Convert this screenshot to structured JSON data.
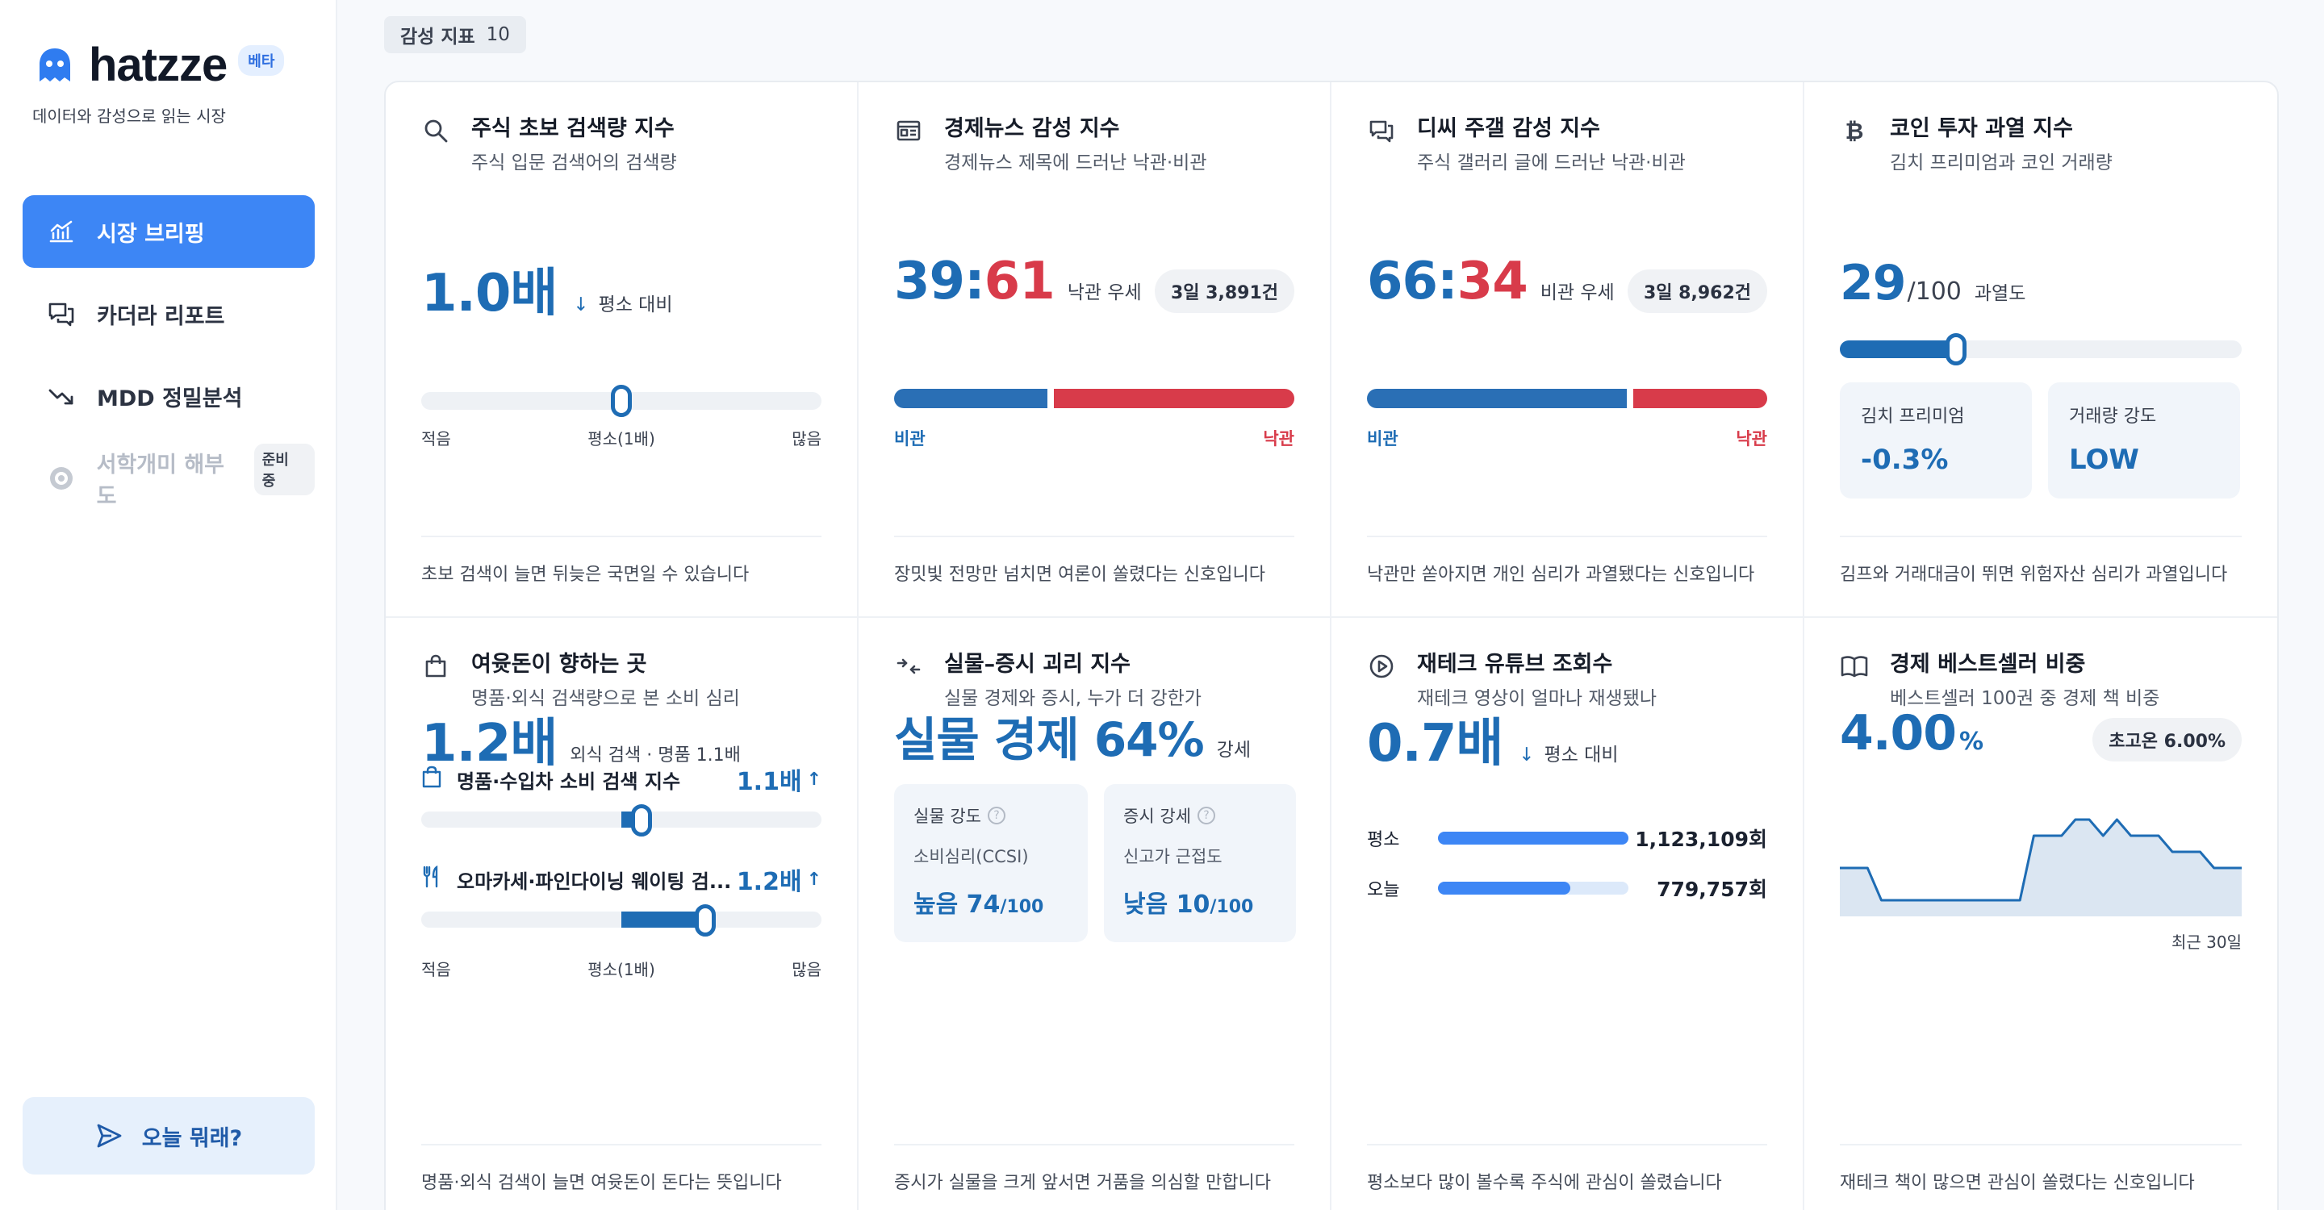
{
  "app": {
    "brand": "hatzze",
    "beta": "베타",
    "tagline": "데이터와 감성으로 읽는 시장"
  },
  "nav": [
    {
      "label": "시장 브리핑",
      "icon": "chart-icon",
      "active": true
    },
    {
      "label": "카더라 리포트",
      "icon": "chat-icon"
    },
    {
      "label": "MDD 정밀분석",
      "icon": "trend-down-icon"
    },
    {
      "label": "서학개미 해부도",
      "icon": "dots-icon",
      "disabled": true,
      "badge": "준비 중"
    }
  ],
  "today_button": "오늘 뭐래?",
  "section": {
    "label": "감성 지표",
    "count": "10"
  },
  "cards": {
    "search": {
      "title": "주식 초보 검색량 지수",
      "subtitle": "주식 입문 검색어의 검색량",
      "value": "1.0배",
      "suffix": "평소 대비",
      "level": 0.5,
      "scale": [
        "적음",
        "평소(1배)",
        "많음"
      ],
      "footer": "초보 검색이 늘면 뒤늦은 국면일 수 있습니다"
    },
    "news": {
      "title": "경제뉴스 감성 지수",
      "subtitle": "경제뉴스 제목에 드러난 낙관·비관",
      "left": "39",
      "sep": ":",
      "right": "61",
      "suffix": "낙관 우세",
      "pill": "3일 3,891건",
      "pess_share": 0.39,
      "labels": [
        "비관",
        "낙관"
      ],
      "footer": "장밋빛 전망만 넘치면 여론이 쏠렸다는 신호입니다"
    },
    "dc": {
      "title": "디씨 주갤 감성 지수",
      "subtitle": "주식 갤러리 글에 드러난 낙관·비관",
      "left": "66",
      "sep": ":",
      "right": "34",
      "suffix": "비관 우세",
      "pill": "3일 8,962건",
      "pess_share": 0.66,
      "labels": [
        "비관",
        "낙관"
      ],
      "footer": "낙관만 쏟아지면 개인 심리가 과열됐다는 신호입니다"
    },
    "coin": {
      "title": "코인 투자 과열 지수",
      "subtitle": "김치 프리미엄과 코인 거래량",
      "value": "29",
      "unit": "/100",
      "suffix": "과열도",
      "level": 0.29,
      "kimchi_label": "김치 프리미엄",
      "kimchi_value": "-0.3%",
      "volume_label": "거래량 강도",
      "volume_value": "LOW",
      "footer": "김프와 거래대금이 뛰면 위험자산 심리가 과열입니다"
    },
    "spend": {
      "title": "여윳돈이 향하는 곳",
      "subtitle": "명품·외식 검색량으로 본 소비 심리",
      "value": "1.2배",
      "suffix": "외식 검색 · 명품 1.1배",
      "row1": {
        "label": "명품·수입차 소비 검색 지수",
        "value": "1.1배",
        "level": 0.55
      },
      "row2": {
        "label": "오마카세·파인다이닝 웨이팅 검...",
        "value": "1.2배",
        "level": 0.71
      },
      "scale": [
        "적음",
        "평소(1배)",
        "많음"
      ],
      "footer": "명품·외식 검색이 늘면 여윳돈이 돈다는 뜻입니다"
    },
    "gap": {
      "title": "실물–증시 괴리 지수",
      "subtitle": "실물 경제와 증시, 누가 더 강한가",
      "value": "실물 경제 64%",
      "suffix": "강세",
      "box1": {
        "label": "실물 강도",
        "sub": "소비심리(CCSI)",
        "value": "높음 74",
        "unit": "/100"
      },
      "box2": {
        "label": "증시 강세",
        "sub": "신고가 근접도",
        "value": "낮음 10",
        "unit": "/100"
      },
      "footer": "증시가 실물을 크게 앞서면 거품을 의심할 만합니다"
    },
    "youtube": {
      "title": "재테크 유튜브 조회수",
      "subtitle": "재테크 영상이 얼마나 재생됐나",
      "value": "0.7배",
      "suffix": "평소 대비",
      "rows": [
        {
          "label": "평소",
          "value": "1,123,109회",
          "num": 1123109
        },
        {
          "label": "오늘",
          "value": "779,757회",
          "num": 779757
        }
      ],
      "footer": "평소보다 많이 볼수록 주식에 관심이 쏠렸습니다"
    },
    "books": {
      "title": "경제 베스트셀러 비중",
      "subtitle": "베스트셀러 100권 중 경제 책 비중",
      "value": "4.00",
      "unit": "%",
      "pill": "초고온 6.00%",
      "caption": "최근 30일",
      "footer": "재테크 책이 많으면 관심이 쏠렸다는 신호입니다"
    }
  },
  "chart_data": {
    "type": "area",
    "x": [
      1,
      2,
      3,
      4,
      5,
      6,
      7,
      8,
      9,
      10,
      11,
      12,
      13,
      14,
      15,
      16,
      17,
      18,
      19,
      20,
      21,
      22,
      23,
      24,
      25,
      26,
      27,
      28,
      29,
      30
    ],
    "values": [
      4,
      4,
      4,
      3,
      3,
      3,
      3,
      3,
      3,
      3,
      3,
      3,
      3,
      3,
      5,
      5,
      5,
      5.5,
      5.5,
      5,
      5.5,
      5,
      5,
      5,
      4.5,
      4.5,
      4.5,
      4,
      4,
      4
    ],
    "ylim": [
      2.5,
      6.5
    ],
    "xlabel": "최근 30일",
    "color": "#1e6cb4"
  }
}
